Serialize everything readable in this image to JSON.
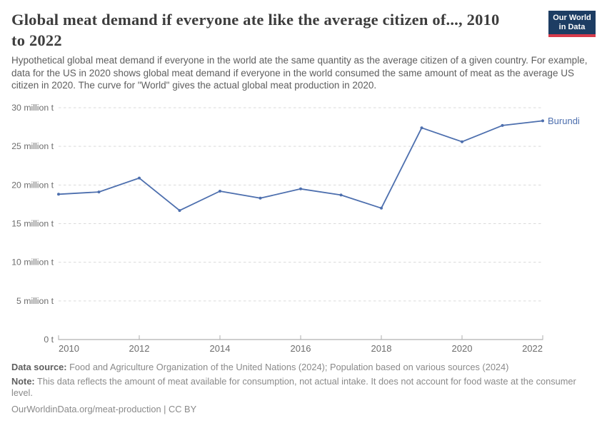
{
  "header": {
    "title_lines": [
      "Global meat demand if everyone ate like the average citizen of..., 2010",
      "to 2022"
    ],
    "subtitle": "Hypothetical global meat demand if everyone in the world ate the same quantity as the average citizen of a given country. For example, data for the US in 2020 shows global meat demand if everyone in the world consumed the same amount of meat as the average US citizen in 2020. The curve for \"World\" gives the actual global meat production in 2020.",
    "logo": {
      "line1": "Our World",
      "line2": "in Data",
      "bg_color": "#1d3d63",
      "stripe_color": "#d73b4b"
    }
  },
  "chart_data": {
    "type": "line",
    "title": "Global meat demand if everyone ate like the average citizen of..., 2010 to 2022",
    "x": [
      2010,
      2011,
      2012,
      2013,
      2014,
      2015,
      2016,
      2017,
      2018,
      2019,
      2020,
      2021,
      2022
    ],
    "series": [
      {
        "name": "Burundi",
        "color": "#4d6fae",
        "values": [
          18.8,
          19.1,
          20.9,
          16.7,
          19.2,
          18.3,
          19.5,
          18.7,
          17.0,
          27.4,
          25.6,
          27.7,
          28.3
        ]
      }
    ],
    "unit": "million t",
    "ylim": [
      0,
      30
    ],
    "xlim": [
      2010,
      2022
    ],
    "yticks": [
      0,
      5,
      10,
      15,
      20,
      25,
      30
    ],
    "ytick_labels": [
      "0 t",
      "5 million t",
      "10 million t",
      "15 million t",
      "20 million t",
      "25 million t",
      "30 million t"
    ],
    "xticks": [
      2010,
      2012,
      2014,
      2016,
      2018,
      2020,
      2022
    ],
    "xtick_labels": [
      "2010",
      "2012",
      "2014",
      "2016",
      "2018",
      "2020",
      "2022"
    ],
    "grid": "horizontal-dashed",
    "legend_position": "end-of-line-label",
    "end_label": "Burundi",
    "colors": {
      "grid": "#dadada",
      "axis": "#9c9c9c",
      "tick": "#aeaeae",
      "tick_label": "#6d6d6d"
    }
  },
  "footer": {
    "data_source_label": "Data source:",
    "data_source": "Food and Agriculture Organization of the United Nations (2024); Population based on various sources (2024)",
    "note_label": "Note:",
    "note": "This data reflects the amount of meat available for consumption, not actual intake. It does not account for food waste at the consumer level.",
    "url_line": "OurWorldinData.org/meat-production | CC BY"
  }
}
